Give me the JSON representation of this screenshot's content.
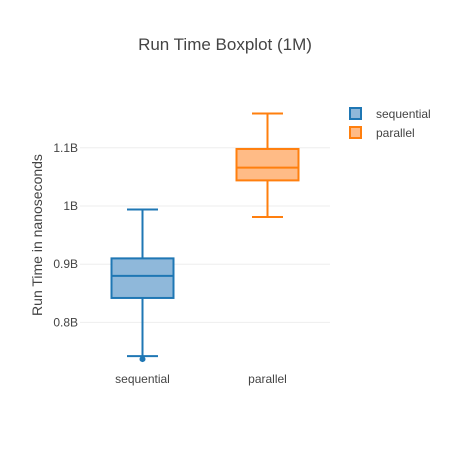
{
  "chart_data": {
    "type": "box",
    "title": "Run Time Boxplot (1M)",
    "xlabel": "",
    "ylabel": "Run Time in nanoseconds",
    "ylim": [
      0.72,
      1.2
    ],
    "y_ticks": [
      {
        "value": 0.8,
        "label": "0.8B"
      },
      {
        "value": 0.9,
        "label": "0.9B"
      },
      {
        "value": 1.0,
        "label": "1B"
      },
      {
        "value": 1.1,
        "label": "1.1B"
      }
    ],
    "y_unit_scale": "billions",
    "grid": true,
    "legend_position": "top-right",
    "categories": [
      "sequential",
      "parallel"
    ],
    "series": [
      {
        "name": "sequential",
        "color": "#1f77b4",
        "fill": "#8fb8da",
        "min": 0.742,
        "q1": 0.842,
        "median": 0.88,
        "q3": 0.91,
        "max": 0.994,
        "outliers": [
          0.737
        ]
      },
      {
        "name": "parallel",
        "color": "#ff7f0e",
        "fill": "#ffbb86",
        "min": 0.981,
        "q1": 1.044,
        "median": 1.066,
        "q3": 1.098,
        "max": 1.159,
        "outliers": []
      }
    ]
  }
}
